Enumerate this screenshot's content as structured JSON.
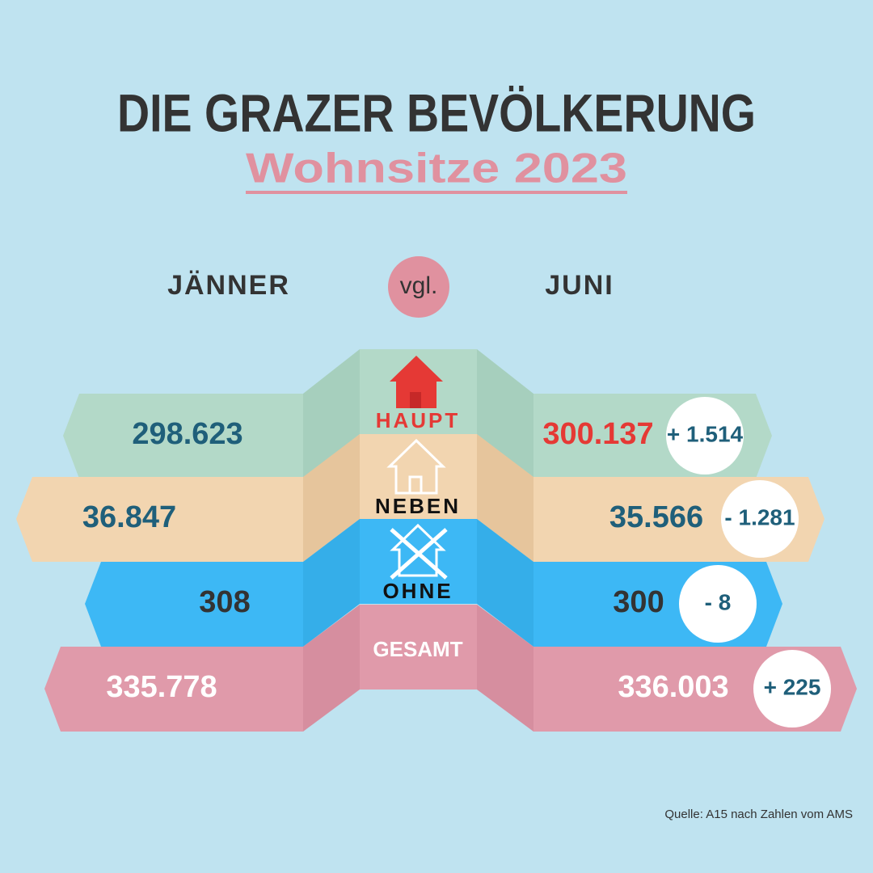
{
  "header": {
    "title": "DIE GRAZER BEVÖLKERUNG",
    "subtitle": "Wohnsitze 2023"
  },
  "columns": {
    "left": "JÄNNER",
    "middle": "vgl.",
    "right": "JUNI"
  },
  "rows": [
    {
      "label": "HAUPT",
      "january": "298.623",
      "june": "300.137",
      "change": "+ 1.514"
    },
    {
      "label": "NEBEN",
      "january": "36.847",
      "june": "35.566",
      "change": "- 1.281"
    },
    {
      "label": "OHNE",
      "january": "308",
      "june": "300",
      "change": "- 8"
    },
    {
      "label": "GESAMT",
      "january": "335.778",
      "june": "336.003",
      "change": "+ 225"
    }
  ],
  "source": "Quelle: A15 nach Zahlen vom AMS"
}
